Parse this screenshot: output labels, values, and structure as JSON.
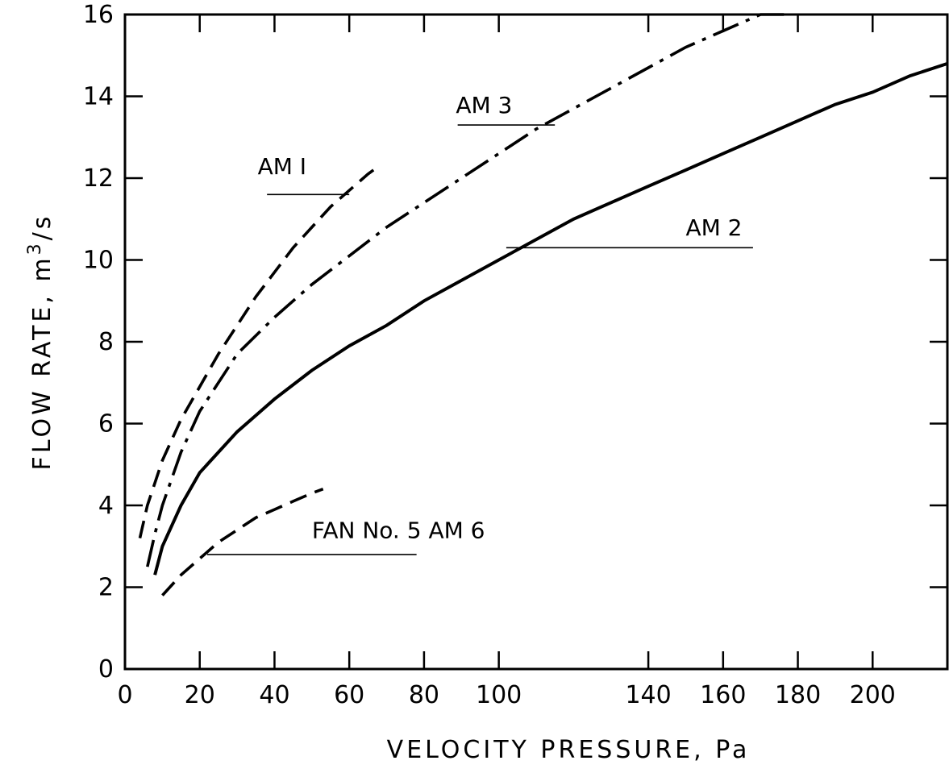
{
  "chart_data": {
    "type": "line",
    "xlabel": "VELOCITY PRESSURE, Pa",
    "ylabel_main": "FLOW RATE,  m",
    "ylabel_sup": "3",
    "ylabel_unit": "/s",
    "xlim": [
      0,
      220
    ],
    "ylim": [
      0,
      16
    ],
    "x_ticks": [
      0,
      20,
      40,
      60,
      80,
      100,
      140,
      160,
      180,
      200
    ],
    "x_tick_labels": [
      "0",
      "20",
      "40",
      "60",
      "80",
      "100",
      "140",
      "160",
      "180",
      "200"
    ],
    "y_ticks": [
      0,
      2,
      4,
      6,
      8,
      10,
      12,
      14,
      16
    ],
    "y_tick_labels": [
      "0",
      "2",
      "4",
      "6",
      "8",
      "10",
      "12",
      "14",
      "16"
    ],
    "series": [
      {
        "name": "AM I",
        "style": "dashed",
        "x": [
          4,
          6,
          10,
          15,
          20,
          25,
          30,
          35,
          40,
          45,
          50,
          55,
          60,
          65,
          68
        ],
        "y": [
          3.2,
          4.0,
          5.1,
          6.1,
          6.9,
          7.7,
          8.4,
          9.1,
          9.7,
          10.3,
          10.8,
          11.3,
          11.7,
          12.1,
          12.3
        ]
      },
      {
        "name": "AM 3",
        "style": "dash-dot",
        "x": [
          6,
          8,
          10,
          15,
          20,
          30,
          40,
          50,
          60,
          70,
          80,
          90,
          100,
          110,
          120,
          130,
          140,
          150,
          160,
          170,
          178
        ],
        "y": [
          2.5,
          3.3,
          4.0,
          5.3,
          6.3,
          7.7,
          8.6,
          9.4,
          10.1,
          10.8,
          11.4,
          12.0,
          12.6,
          13.2,
          13.7,
          14.2,
          14.7,
          15.2,
          15.6,
          16.0,
          16.3
        ]
      },
      {
        "name": "AM 2",
        "style": "solid",
        "x": [
          8,
          10,
          15,
          20,
          30,
          40,
          50,
          60,
          70,
          80,
          90,
          100,
          110,
          120,
          130,
          140,
          150,
          160,
          170,
          180,
          190,
          200,
          210,
          220
        ],
        "y": [
          2.3,
          3.0,
          4.0,
          4.8,
          5.8,
          6.6,
          7.3,
          7.9,
          8.4,
          9.0,
          9.5,
          10.0,
          10.5,
          11.0,
          11.4,
          11.8,
          12.2,
          12.6,
          13.0,
          13.4,
          13.8,
          14.1,
          14.5,
          14.8
        ]
      },
      {
        "name": "FAN No. 5 AM 6",
        "style": "dashed",
        "x": [
          10,
          15,
          20,
          25,
          30,
          35,
          40,
          45,
          50,
          53
        ],
        "y": [
          1.8,
          2.3,
          2.7,
          3.1,
          3.4,
          3.7,
          3.9,
          4.1,
          4.3,
          4.4
        ]
      }
    ],
    "annotations": [
      {
        "label": "AM I",
        "text_x": 35.5,
        "text_y": 12.1,
        "line_x0": 38,
        "line_x1": 60,
        "line_y": 11.6
      },
      {
        "label": "AM 3",
        "text_x": 88.5,
        "text_y": 13.6,
        "line_x0": 89,
        "line_x1": 115,
        "line_y": 13.3
      },
      {
        "label": "AM 2",
        "text_x": 150,
        "text_y": 10.6,
        "line_x0": 102,
        "line_x1": 168,
        "line_y": 10.3
      },
      {
        "label": "FAN No. 5 AM 6",
        "text_x": 50,
        "text_y": 3.2,
        "line_x0": 22,
        "line_x1": 78,
        "line_y": 2.8
      }
    ]
  }
}
